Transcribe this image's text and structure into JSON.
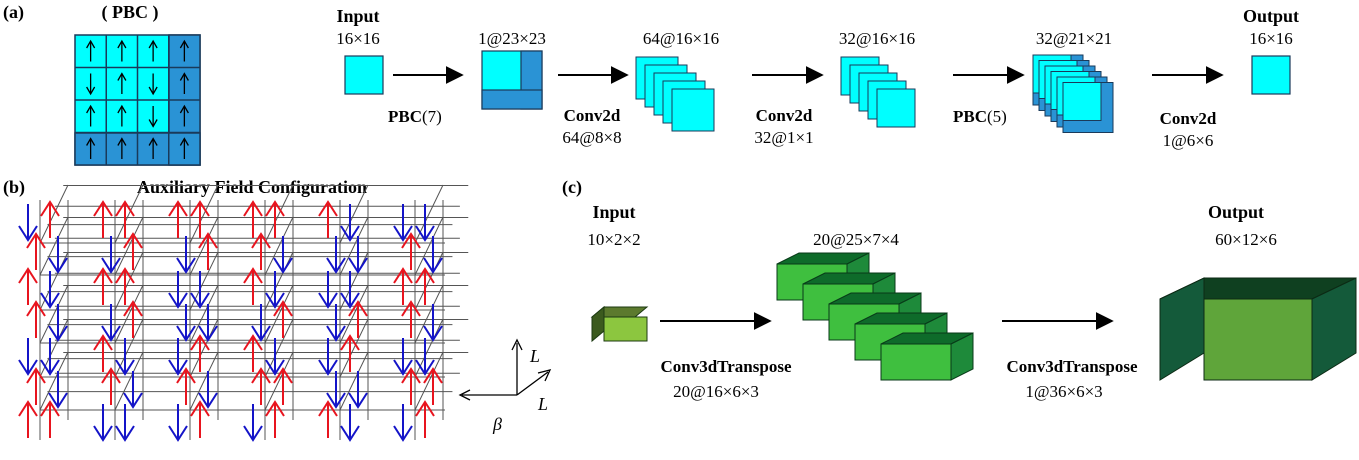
{
  "panel_a": {
    "label": "(a)",
    "pbc_title": "( PBC )",
    "lattice_arrows": [
      [
        "up",
        "up",
        "up",
        "up"
      ],
      [
        "down",
        "up",
        "down",
        "up"
      ],
      [
        "up",
        "up",
        "down",
        "up"
      ],
      [
        "up",
        "up",
        "up",
        "up"
      ]
    ],
    "input_title": "Input",
    "input_size": "16×16",
    "stage1_size": "1@23×23",
    "op1_bold": "PBC",
    "op1_rest": "(7)",
    "stage2_size": "64@16×16",
    "op2_name": "Conv2d",
    "op2_param": "64@8×8",
    "stage3_size": "32@16×16",
    "op3_name": "Conv2d",
    "op3_param": "32@1×1",
    "stage4_size": "32@21×21",
    "op4_bold": "PBC",
    "op4_rest": "(5)",
    "op5_name": "Conv2d",
    "op5_param": "1@6×6",
    "output_title": "Output",
    "output_size": "16×16",
    "colors": {
      "cyan": "#00FFFF",
      "blue": "#2A93D5",
      "stroke": "#1a3a5a"
    }
  },
  "panel_b": {
    "label": "(b)",
    "title": "Auxiliary Field Configuration",
    "axis_L_up": "L",
    "axis_L_diag": "L",
    "axis_beta": "β",
    "colors": {
      "up": "#E8141E",
      "down": "#1414C8",
      "grid": "#555555"
    }
  },
  "panel_c": {
    "label": "(c)",
    "input_title": "Input",
    "input_size": "10×2×2",
    "mid_size": "20@25×7×4",
    "output_title": "Output",
    "output_size": "60×12×6",
    "op1_name": "Conv3dTranspose",
    "op1_param": "20@16×6×3",
    "op2_name": "Conv3dTranspose",
    "op2_param": "1@36×6×3",
    "colors": {
      "light_green": "#3FBF3F",
      "dark_green": "#0E6B2A",
      "lime": "#8CC63F"
    }
  }
}
